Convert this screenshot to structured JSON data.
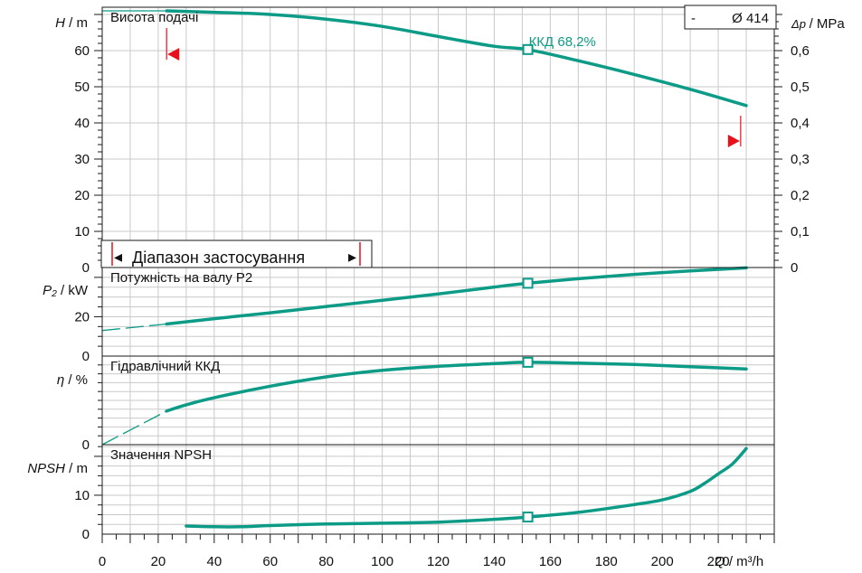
{
  "colors": {
    "curve": "#0c9b86",
    "limit": "#e8101a",
    "frame": "#1a1a1a",
    "grid": "#c9c9c9"
  },
  "legend": {
    "marker": "-",
    "label": "Ø 414"
  },
  "range": {
    "label": "Діапазон застосування",
    "left_arrow": "◂",
    "right_arrow": "▸"
  },
  "chart_data": [
    {
      "type": "line",
      "title": "Висота подачі",
      "ylabel": "H",
      "yunit": "/ m",
      "y2label": "Δp",
      "y2unit": "/ MPa",
      "xlim": [
        0,
        240
      ],
      "ylim": [
        0,
        72
      ],
      "y2lim": [
        0,
        0.72
      ],
      "yticks": [
        0,
        10,
        20,
        30,
        40,
        50,
        60
      ],
      "y2ticks": [
        "0",
        "0,1",
        "0,2",
        "0,3",
        "0,4",
        "0,5",
        "0,6"
      ],
      "grid": true,
      "operating_point": {
        "x": 152,
        "y": 60.3,
        "label": "ККД  68,2%"
      },
      "limits": {
        "min_q": 23,
        "max_q": 228
      },
      "series": [
        {
          "x": [
            0,
            23,
            40,
            60,
            80,
            100,
            120,
            140,
            152,
            170,
            190,
            210,
            230
          ],
          "y": [
            71,
            71,
            70.6,
            70,
            68.7,
            66.7,
            63.9,
            61.2,
            60.3,
            57.2,
            53.4,
            49.3,
            44.8
          ]
        }
      ]
    },
    {
      "type": "line",
      "title": "Потужність на валу P2",
      "ylabel": "P₂",
      "yunit": "/ kW",
      "xlim": [
        0,
        240
      ],
      "ylim": [
        0,
        45
      ],
      "yticks": [
        0,
        20
      ],
      "grid": true,
      "operating_point": {
        "x": 152,
        "y": 37
      },
      "series": [
        {
          "x": [
            0,
            23,
            40,
            60,
            80,
            100,
            120,
            140,
            152,
            170,
            190,
            210,
            230
          ],
          "y": [
            13,
            16.3,
            19,
            22,
            25.2,
            28.4,
            31.6,
            35.1,
            37,
            39.3,
            41.5,
            43.3,
            44.8
          ]
        }
      ]
    },
    {
      "type": "line",
      "title": "Гідравлічний ККД",
      "ylabel": "η",
      "yunit": "/ %",
      "xlim": [
        0,
        240
      ],
      "ylim": [
        0,
        100
      ],
      "yticks": [
        0
      ],
      "grid": true,
      "operating_point": {
        "x": 152,
        "y": 93
      },
      "series": [
        {
          "x": [
            0,
            23,
            30,
            40,
            60,
            80,
            100,
            120,
            140,
            152,
            170,
            190,
            210,
            230
          ],
          "y": [
            0,
            38,
            45,
            53,
            66,
            76.5,
            84,
            88.5,
            91.5,
            93,
            92,
            90.5,
            88,
            85.5
          ]
        }
      ]
    },
    {
      "type": "line",
      "title": "Значення NPSH",
      "ylabel": "NPSH",
      "yunit": "/ m",
      "xlabel": "Q",
      "xunit": "/ m³/h",
      "xlim": [
        0,
        240
      ],
      "ylim": [
        0,
        23
      ],
      "yticks": [
        0,
        10
      ],
      "xticks": [
        0,
        20,
        40,
        60,
        80,
        100,
        120,
        140,
        160,
        180,
        200,
        220
      ],
      "grid": true,
      "operating_point": {
        "x": 152,
        "y": 4.4
      },
      "series": [
        {
          "x": [
            30,
            40,
            50,
            60,
            80,
            100,
            120,
            140,
            152,
            170,
            190,
            200,
            210,
            215,
            220,
            225,
            230
          ],
          "y": [
            2.1,
            1.9,
            1.9,
            2.2,
            2.6,
            2.8,
            3.1,
            3.8,
            4.4,
            5.6,
            7.6,
            8.8,
            11,
            13,
            15.5,
            18,
            22
          ]
        }
      ]
    }
  ]
}
